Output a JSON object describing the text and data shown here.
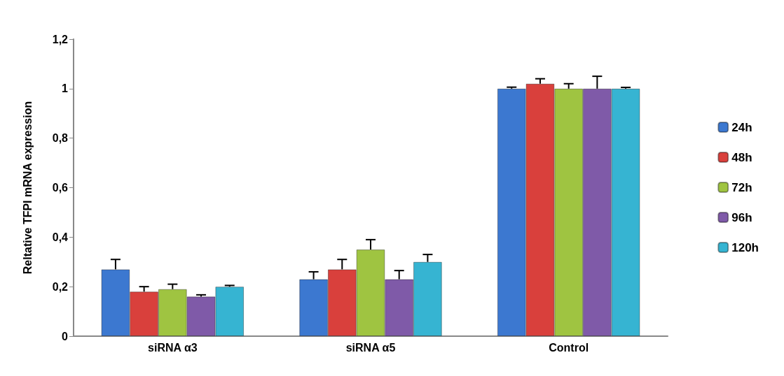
{
  "chart_data": {
    "type": "bar",
    "ylabel": "Reltative TFPI mRNA expression",
    "categories": [
      "siRNA α3",
      "siRNA α5",
      "Control"
    ],
    "series": [
      {
        "name": "24h",
        "color": "#3c78d0",
        "values": [
          0.27,
          0.23,
          1.0
        ],
        "errors": [
          0.04,
          0.03,
          0.006
        ]
      },
      {
        "name": "48h",
        "color": "#d9403c",
        "values": [
          0.18,
          0.27,
          1.02
        ],
        "errors": [
          0.02,
          0.04,
          0.02
        ]
      },
      {
        "name": "72h",
        "color": "#9fc441",
        "values": [
          0.19,
          0.35,
          1.0
        ],
        "errors": [
          0.02,
          0.04,
          0.02
        ]
      },
      {
        "name": "96h",
        "color": "#7f5aa8",
        "values": [
          0.16,
          0.23,
          1.0
        ],
        "errors": [
          0.007,
          0.035,
          0.05
        ]
      },
      {
        "name": "120h",
        "color": "#36b4d2",
        "values": [
          0.2,
          0.3,
          1.0
        ],
        "errors": [
          0.005,
          0.03,
          0.005
        ]
      }
    ],
    "ylim": [
      0,
      1.2
    ],
    "yticks": [
      0,
      {
        "value": 0.2,
        "label": "0,2"
      },
      {
        "value": 0.4,
        "label": "0,4"
      },
      {
        "value": 0.6,
        "label": "0,6"
      },
      {
        "value": 0.8,
        "label": "0,8"
      },
      1,
      {
        "value": 1.2,
        "label": "1,2"
      }
    ],
    "grid": false,
    "legend": "right"
  }
}
